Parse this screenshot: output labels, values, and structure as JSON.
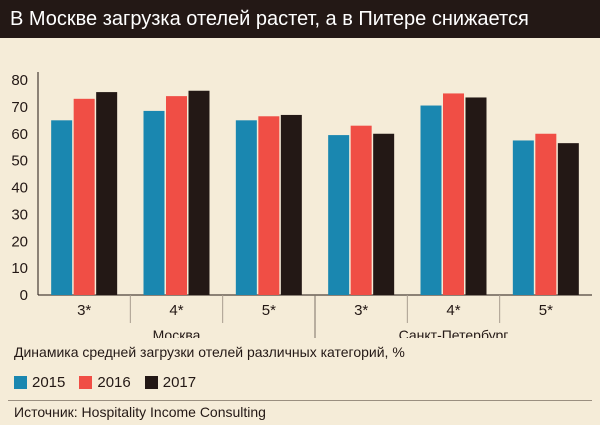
{
  "header": {
    "title": "В Москве загрузка отелей растет, а в Питере снижается"
  },
  "colors": {
    "s2015": "#1a87b0",
    "s2016": "#f04e45",
    "s2017": "#231815",
    "background": "#f5ecd8"
  },
  "chart_data": {
    "type": "bar",
    "title": "В Москве загрузка отелей растет, а в Питере снижается",
    "subtitle": "Динамика средней загрузки отелей различных категорий, %",
    "categories": [
      "3*",
      "4*",
      "5*",
      "3*",
      "4*",
      "5*"
    ],
    "groups": [
      {
        "label": "Москва",
        "categories": [
          "3*",
          "4*",
          "5*"
        ]
      },
      {
        "label": "Санкт-Петербург",
        "categories": [
          "3*",
          "4*",
          "5*"
        ]
      }
    ],
    "series": [
      {
        "name": "2015",
        "values": [
          65,
          68.5,
          65,
          59.5,
          70.5,
          57.5
        ]
      },
      {
        "name": "2016",
        "values": [
          73,
          74,
          66.5,
          63,
          75,
          60
        ]
      },
      {
        "name": "2017",
        "values": [
          75.5,
          76,
          67,
          60,
          73.5,
          56.5
        ]
      }
    ],
    "yticks": [
      0,
      10,
      20,
      30,
      40,
      50,
      60,
      70,
      80
    ],
    "ylim": [
      0,
      80
    ],
    "grid": false,
    "legend": "bottom-left"
  },
  "footer": {
    "source": "Источник: Hospitality Income Consulting"
  }
}
